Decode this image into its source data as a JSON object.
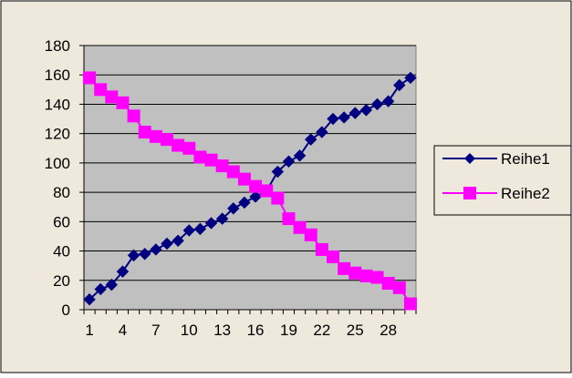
{
  "chart_data": {
    "type": "line",
    "x": [
      1,
      2,
      3,
      4,
      5,
      6,
      7,
      8,
      9,
      10,
      11,
      12,
      13,
      14,
      15,
      16,
      17,
      18,
      19,
      20,
      21,
      22,
      23,
      24,
      25,
      26,
      27,
      28,
      29,
      30
    ],
    "xtick_labels": [
      "1",
      "4",
      "7",
      "10",
      "13",
      "16",
      "19",
      "22",
      "25",
      "28"
    ],
    "xtick_values": [
      1,
      4,
      7,
      10,
      13,
      16,
      19,
      22,
      25,
      28
    ],
    "ylim": [
      0,
      180
    ],
    "yticks": [
      0,
      20,
      40,
      60,
      80,
      100,
      120,
      140,
      160,
      180
    ],
    "grid": "horizontal",
    "legend": "right",
    "series": [
      {
        "name": "Reihe1",
        "color": "#000080",
        "marker": "diamond",
        "values": [
          7,
          14,
          17,
          26,
          37,
          38,
          41,
          45,
          47,
          54,
          55,
          59,
          62,
          69,
          73,
          77,
          81,
          94,
          101,
          105,
          116,
          121,
          130,
          131,
          134,
          136,
          140,
          142,
          153,
          158
        ]
      },
      {
        "name": "Reihe2",
        "color": "#FF00FF",
        "marker": "square",
        "values": [
          158,
          150,
          145,
          141,
          132,
          121,
          118,
          116,
          112,
          110,
          104,
          102,
          98,
          94,
          89,
          84,
          81,
          76,
          62,
          56,
          51,
          41,
          36,
          28,
          25,
          23,
          22,
          18,
          15,
          4
        ]
      }
    ]
  },
  "colors": {
    "chart_area": "#EFE8DC",
    "plot_area": "#C0C0C0"
  }
}
